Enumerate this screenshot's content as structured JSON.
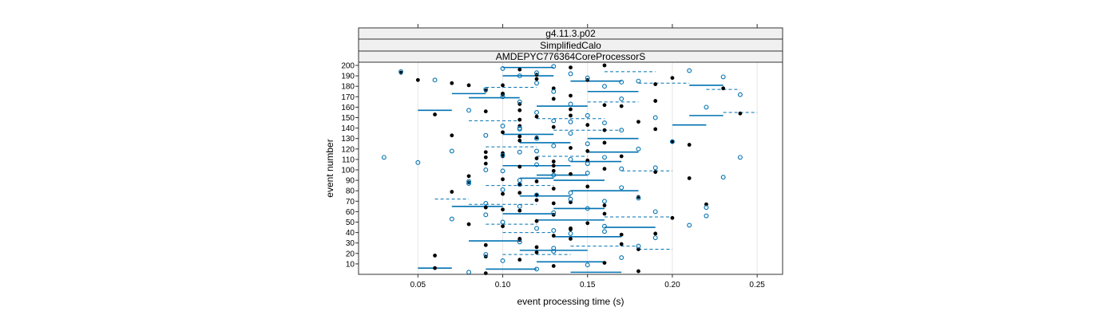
{
  "chart_data": {
    "type": "scatter",
    "strips": [
      "g4.11.3.p02",
      "SimplifiedCalo",
      "AMDEPYC776364CoreProcessorS"
    ],
    "xlabel": "event processing time (s)",
    "ylabel": "event number",
    "xlim": [
      0.015,
      0.265
    ],
    "ylim": [
      0,
      200
    ],
    "x_ticks": [
      0.05,
      0.1,
      0.15,
      0.2,
      0.25
    ],
    "x_tick_labels": [
      "0.05",
      "0.10",
      "0.15",
      "0.20",
      "0.25"
    ],
    "y_ticks": [
      10,
      20,
      30,
      40,
      50,
      60,
      70,
      80,
      90,
      100,
      110,
      120,
      130,
      140,
      150,
      160,
      170,
      180,
      190,
      200
    ],
    "grid": "vertical lines at x ticks",
    "colors": {
      "filled": "#000000",
      "open": "#0072b2",
      "line": "#0072b2"
    },
    "series": [
      {
        "marker": "filled-dot",
        "x": [
          0.09,
          0.18,
          0.06,
          0.13,
          0.16,
          0.11,
          0.09,
          0.12,
          0.18,
          0.17,
          0.11,
          0.13,
          0.19,
          0.14,
          0.1,
          0.15,
          0.12,
          0.2,
          0.13,
          0.11,
          0.09,
          0.16,
          0.14,
          0.12,
          0.18,
          0.1,
          0.07,
          0.13,
          0.15,
          0.11,
          0.12,
          0.1,
          0.08,
          0.14,
          0.19,
          0.16,
          0.11,
          0.09,
          0.13,
          0.12,
          0.17,
          0.1,
          0.15,
          0.14,
          0.21,
          0.16,
          0.11,
          0.12,
          0.07,
          0.1,
          0.16,
          0.13,
          0.15,
          0.18,
          0.11,
          0.12,
          0.06,
          0.09,
          0.14,
          0.17,
          0.11,
          0.19,
          0.13,
          0.14,
          0.1,
          0.09,
          0.13,
          0.08,
          0.07,
          0.15,
          0.2,
          0.12,
          0.04,
          0.11,
          0.14,
          0.16,
          0.13,
          0.1,
          0.09,
          0.2,
          0.19,
          0.14,
          0.11,
          0.16,
          0.1,
          0.12,
          0.21,
          0.11,
          0.13,
          0.16,
          0.08,
          0.17,
          0.09,
          0.06,
          0.24,
          0.11,
          0.09,
          0.15,
          0.13,
          0.08,
          0.12,
          0.1,
          0.22,
          0.14,
          0.11,
          0.12,
          0.19,
          0.23,
          0.05,
          0.1,
          0.11,
          0.14
        ],
        "y": [
          1,
          3,
          6,
          8,
          11,
          14,
          17,
          21,
          24,
          29,
          33,
          37,
          39,
          43,
          46,
          49,
          51,
          54,
          57,
          61,
          64,
          66,
          69,
          71,
          74,
          77,
          79,
          82,
          84,
          86,
          89,
          91,
          94,
          96,
          98,
          101,
          103,
          106,
          108,
          111,
          113,
          116,
          118,
          121,
          124,
          126,
          128,
          131,
          133,
          136,
          138,
          141,
          143,
          146,
          148,
          151,
          153,
          156,
          158,
          161,
          163,
          166,
          168,
          171,
          173,
          176,
          178,
          181,
          183,
          186,
          188,
          191,
          193,
          196,
          198,
          200,
          104,
          113,
          117,
          127,
          139,
          152,
          157,
          162,
          172,
          187,
          92,
          78,
          68,
          58,
          48,
          38,
          28,
          18,
          154,
          132,
          112,
          109,
          99,
          88,
          76,
          62,
          67,
          44,
          34,
          26,
          182,
          178,
          186,
          181,
          142,
          34
        ]
      },
      {
        "marker": "open-circle",
        "x": [
          0.08,
          0.12,
          0.15,
          0.1,
          0.17,
          0.09,
          0.13,
          0.18,
          0.11,
          0.19,
          0.14,
          0.16,
          0.12,
          0.21,
          0.1,
          0.07,
          0.22,
          0.13,
          0.15,
          0.11,
          0.09,
          0.16,
          0.18,
          0.12,
          0.14,
          0.1,
          0.17,
          0.08,
          0.11,
          0.23,
          0.13,
          0.15,
          0.09,
          0.19,
          0.12,
          0.05,
          0.14,
          0.16,
          0.1,
          0.11,
          0.18,
          0.03,
          0.07,
          0.13,
          0.15,
          0.2,
          0.12,
          0.09,
          0.14,
          0.17,
          0.11,
          0.1,
          0.16,
          0.13,
          0.19,
          0.15,
          0.12,
          0.08,
          0.22,
          0.14,
          0.11,
          0.17,
          0.1,
          0.24,
          0.13,
          0.09,
          0.16,
          0.12,
          0.18,
          0.15,
          0.11,
          0.14,
          0.21,
          0.1,
          0.13,
          0.06,
          0.23,
          0.17,
          0.12,
          0.04,
          0.09,
          0.14,
          0.11,
          0.19,
          0.16,
          0.13,
          0.1,
          0.15,
          0.12,
          0.22,
          0.08,
          0.11,
          0.14,
          0.24,
          0.17,
          0.13
        ],
        "y": [
          2,
          5,
          9,
          13,
          16,
          19,
          22,
          27,
          31,
          35,
          39,
          41,
          44,
          47,
          50,
          53,
          56,
          59,
          63,
          65,
          68,
          70,
          73,
          76,
          78,
          81,
          83,
          87,
          90,
          93,
          95,
          97,
          100,
          102,
          105,
          107,
          110,
          112,
          114,
          117,
          120,
          112,
          118,
          123,
          125,
          127,
          130,
          133,
          135,
          138,
          140,
          142,
          145,
          147,
          150,
          152,
          155,
          157,
          160,
          163,
          165,
          168,
          170,
          172,
          175,
          177,
          180,
          183,
          185,
          188,
          190,
          192,
          195,
          197,
          199,
          186,
          189,
          184,
          193,
          194,
          57,
          72,
          86,
          60,
          46,
          25,
          99,
          106,
          118,
          64,
          89,
          139,
          146,
          112,
          101,
          42
        ]
      }
    ],
    "intervals": [
      {
        "x0": 0.09,
        "x1": 0.12,
        "y": 5,
        "style": "solid"
      },
      {
        "x0": 0.12,
        "x1": 0.16,
        "y": 12,
        "style": "solid"
      },
      {
        "x0": 0.1,
        "x1": 0.14,
        "y": 19,
        "style": "dashed"
      },
      {
        "x0": 0.11,
        "x1": 0.15,
        "y": 23,
        "style": "solid"
      },
      {
        "x0": 0.14,
        "x1": 0.18,
        "y": 27,
        "style": "dashed"
      },
      {
        "x0": 0.08,
        "x1": 0.11,
        "y": 32,
        "style": "solid"
      },
      {
        "x0": 0.13,
        "x1": 0.17,
        "y": 36,
        "style": "solid"
      },
      {
        "x0": 0.1,
        "x1": 0.13,
        "y": 40,
        "style": "dashed"
      },
      {
        "x0": 0.16,
        "x1": 0.19,
        "y": 45,
        "style": "solid"
      },
      {
        "x0": 0.09,
        "x1": 0.12,
        "y": 48,
        "style": "dashed"
      },
      {
        "x0": 0.12,
        "x1": 0.16,
        "y": 52,
        "style": "solid"
      },
      {
        "x0": 0.16,
        "x1": 0.2,
        "y": 55,
        "style": "dashed"
      },
      {
        "x0": 0.1,
        "x1": 0.13,
        "y": 58,
        "style": "solid"
      },
      {
        "x0": 0.13,
        "x1": 0.16,
        "y": 63,
        "style": "solid"
      },
      {
        "x0": 0.08,
        "x1": 0.12,
        "y": 67,
        "style": "dashed"
      },
      {
        "x0": 0.06,
        "x1": 0.08,
        "y": 72,
        "style": "dashed"
      },
      {
        "x0": 0.11,
        "x1": 0.14,
        "y": 75,
        "style": "solid"
      },
      {
        "x0": 0.14,
        "x1": 0.18,
        "y": 80,
        "style": "solid"
      },
      {
        "x0": 0.09,
        "x1": 0.13,
        "y": 85,
        "style": "dashed"
      },
      {
        "x0": 0.13,
        "x1": 0.16,
        "y": 90,
        "style": "solid"
      },
      {
        "x0": 0.12,
        "x1": 0.15,
        "y": 95,
        "style": "solid"
      },
      {
        "x0": 0.17,
        "x1": 0.2,
        "y": 99,
        "style": "dashed"
      },
      {
        "x0": 0.1,
        "x1": 0.14,
        "y": 104,
        "style": "solid"
      },
      {
        "x0": 0.14,
        "x1": 0.17,
        "y": 108,
        "style": "solid"
      },
      {
        "x0": 0.12,
        "x1": 0.15,
        "y": 113,
        "style": "dashed"
      },
      {
        "x0": 0.15,
        "x1": 0.18,
        "y": 117,
        "style": "solid"
      },
      {
        "x0": 0.09,
        "x1": 0.12,
        "y": 122,
        "style": "dashed"
      },
      {
        "x0": 0.11,
        "x1": 0.14,
        "y": 126,
        "style": "solid"
      },
      {
        "x0": 0.15,
        "x1": 0.18,
        "y": 130,
        "style": "solid"
      },
      {
        "x0": 0.1,
        "x1": 0.13,
        "y": 134,
        "style": "solid"
      },
      {
        "x0": 0.13,
        "x1": 0.17,
        "y": 138,
        "style": "dashed"
      },
      {
        "x0": 0.2,
        "x1": 0.22,
        "y": 143,
        "style": "solid"
      },
      {
        "x0": 0.08,
        "x1": 0.11,
        "y": 147,
        "style": "dashed"
      },
      {
        "x0": 0.21,
        "x1": 0.23,
        "y": 152,
        "style": "solid"
      },
      {
        "x0": 0.23,
        "x1": 0.25,
        "y": 155,
        "style": "dashed"
      },
      {
        "x0": 0.05,
        "x1": 0.07,
        "y": 157,
        "style": "solid"
      },
      {
        "x0": 0.12,
        "x1": 0.15,
        "y": 161,
        "style": "solid"
      },
      {
        "x0": 0.15,
        "x1": 0.18,
        "y": 165,
        "style": "dashed"
      },
      {
        "x0": 0.08,
        "x1": 0.11,
        "y": 169,
        "style": "solid"
      },
      {
        "x0": 0.07,
        "x1": 0.09,
        "y": 173,
        "style": "solid"
      },
      {
        "x0": 0.22,
        "x1": 0.24,
        "y": 177,
        "style": "dashed"
      },
      {
        "x0": 0.21,
        "x1": 0.23,
        "y": 181,
        "style": "solid"
      },
      {
        "x0": 0.18,
        "x1": 0.21,
        "y": 183,
        "style": "dashed"
      },
      {
        "x0": 0.14,
        "x1": 0.17,
        "y": 185,
        "style": "solid"
      },
      {
        "x0": 0.1,
        "x1": 0.13,
        "y": 190,
        "style": "solid"
      },
      {
        "x0": 0.16,
        "x1": 0.19,
        "y": 194,
        "style": "dashed"
      },
      {
        "x0": 0.1,
        "x1": 0.13,
        "y": 198,
        "style": "solid"
      },
      {
        "x0": 0.09,
        "x1": 0.12,
        "y": 179,
        "style": "dashed"
      },
      {
        "x0": 0.15,
        "x1": 0.18,
        "y": 175,
        "style": "solid"
      },
      {
        "x0": 0.12,
        "x1": 0.16,
        "y": 149,
        "style": "dashed"
      },
      {
        "x0": 0.07,
        "x1": 0.1,
        "y": 65,
        "style": "solid"
      },
      {
        "x0": 0.14,
        "x1": 0.17,
        "y": 2,
        "style": "solid"
      },
      {
        "x0": 0.05,
        "x1": 0.07,
        "y": 6,
        "style": "solid"
      },
      {
        "x0": 0.18,
        "x1": 0.2,
        "y": 24,
        "style": "dashed"
      },
      {
        "x0": 0.11,
        "x1": 0.13,
        "y": 92,
        "style": "solid"
      }
    ]
  }
}
